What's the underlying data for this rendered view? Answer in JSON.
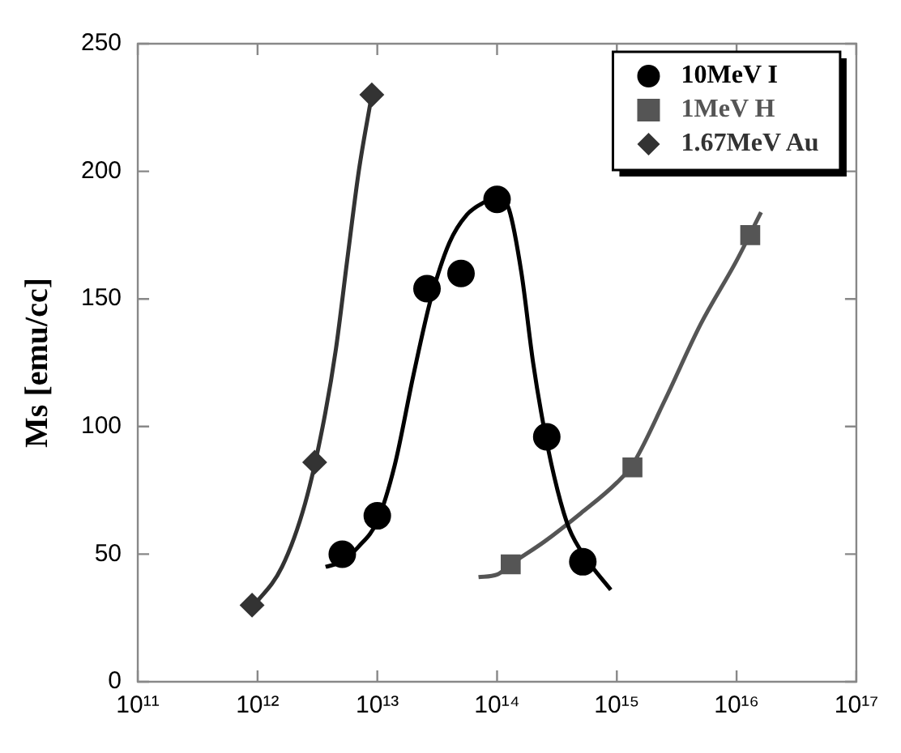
{
  "chart_data": {
    "type": "scatter",
    "ylabel": "Ms [emu/cc]",
    "log": "x",
    "xlim": [
      100000000000.0,
      1e+17
    ],
    "ylim": [
      0,
      250
    ],
    "xticks": [
      {
        "value": 100000000000.0,
        "label": "10¹¹"
      },
      {
        "value": 1000000000000.0,
        "label": "10¹²"
      },
      {
        "value": 10000000000000.0,
        "label": "10¹³"
      },
      {
        "value": 100000000000000.0,
        "label": "10¹⁴"
      },
      {
        "value": 1000000000000000.0,
        "label": "10¹⁵"
      },
      {
        "value": 1e+16,
        "label": "10¹⁶"
      },
      {
        "value": 1e+17,
        "label": "10¹⁷"
      }
    ],
    "yticks": [
      0,
      50,
      100,
      150,
      200,
      250
    ],
    "grid": false,
    "legend": "top right",
    "series": [
      {
        "name": "10MeV I",
        "marker": "circle",
        "color": "#000000",
        "x": [
          5100000000000.0,
          10000000000000.0,
          26000000000000.0,
          50000000000000.0,
          100000000000000.0,
          260000000000000.0,
          520000000000000.0
        ],
        "values": [
          50,
          65,
          154,
          160,
          189,
          96,
          47
        ]
      },
      {
        "name": "1MeV H",
        "marker": "square",
        "color": "#555555",
        "x": [
          130000000000000.0,
          1350000000000000.0,
          1.3e+16
        ],
        "values": [
          46,
          84,
          175
        ]
      },
      {
        "name": "1.67MeV Au",
        "marker": "diamond",
        "color": "#333333",
        "x": [
          900000000000.0,
          3000000000000.0,
          9000000000000.0
        ],
        "values": [
          30,
          86,
          230
        ]
      },
      {
        "type": "line",
        "marker": "none",
        "color": "#000000",
        "x": [
          3700000000000.0,
          5000000000000.0,
          7000000000000.0,
          10000000000000.0,
          14000000000000.0,
          20000000000000.0,
          28000000000000.0,
          40000000000000.0,
          56000000000000.0,
          79000000000000.0,
          100000000000000.0,
          126000000000000.0,
          160000000000000.0,
          200000000000000.0,
          250000000000000.0,
          320000000000000.0,
          400000000000000.0,
          560000000000000.0,
          890000000000000.0
        ],
        "values": [
          45,
          47,
          53,
          63,
          85,
          120,
          150,
          172,
          183,
          188,
          190,
          185,
          160,
          125,
          98,
          75,
          60,
          48,
          36
        ]
      },
      {
        "type": "line",
        "marker": "none",
        "color": "#555555",
        "x": [
          70000000000000.0,
          100000000000000.0,
          130000000000000.0,
          250000000000000.0,
          500000000000000.0,
          1000000000000000.0,
          1350000000000000.0,
          2500000000000000.0,
          5000000000000000.0,
          1e+16,
          1.6e+16
        ],
        "values": [
          41,
          42,
          46,
          55,
          66,
          78,
          85,
          110,
          140,
          165,
          184
        ]
      },
      {
        "type": "line",
        "marker": "none",
        "color": "#333333",
        "x": [
          900000000000.0,
          1600000000000.0,
          2500000000000.0,
          3500000000000.0,
          4500000000000.0,
          5600000000000.0,
          7000000000000.0,
          9000000000000.0
        ],
        "values": [
          29,
          45,
          70,
          100,
          130,
          165,
          200,
          230
        ]
      }
    ]
  }
}
